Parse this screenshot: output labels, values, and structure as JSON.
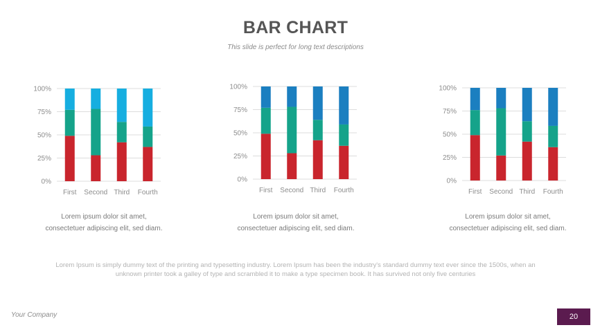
{
  "title": "BAR CHART",
  "subtitle": "This slide is perfect for long text descriptions",
  "colors": {
    "red": "#c9252d",
    "green": "#15a38a",
    "blue_light": "#16aee0",
    "blue_dark": "#1b7fc0"
  },
  "chart_data": [
    {
      "type": "bar",
      "stacked": true,
      "percent": true,
      "categories": [
        "First",
        "Second",
        "Third",
        "Fourth"
      ],
      "y_ticks": [
        "0%",
        "25%",
        "50%",
        "75%",
        "100%"
      ],
      "ylim": [
        0,
        100
      ],
      "series": [
        {
          "color": "#c9252d",
          "values": [
            49,
            28,
            42,
            37
          ]
        },
        {
          "color": "#15a38a",
          "values": [
            28,
            50,
            22,
            22
          ]
        },
        {
          "color": "#16aee0",
          "values": [
            23,
            22,
            36,
            41
          ]
        }
      ]
    },
    {
      "type": "bar",
      "stacked": true,
      "percent": true,
      "categories": [
        "First",
        "Second",
        "Third",
        "Fourth"
      ],
      "y_ticks": [
        "0%",
        "25%",
        "50%",
        "75%",
        "100%"
      ],
      "ylim": [
        0,
        100
      ],
      "series": [
        {
          "color": "#c9252d",
          "values": [
            49,
            28,
            42,
            36
          ]
        },
        {
          "color": "#15a38a",
          "values": [
            28,
            50,
            22,
            23
          ]
        },
        {
          "color": "#1b7fc0",
          "values": [
            23,
            22,
            36,
            41
          ]
        }
      ]
    },
    {
      "type": "bar",
      "stacked": true,
      "percent": true,
      "categories": [
        "First",
        "Second",
        "Third",
        "Fourth"
      ],
      "y_ticks": [
        "0%",
        "25%",
        "50%",
        "75%",
        "100%"
      ],
      "ylim": [
        0,
        100
      ],
      "series": [
        {
          "color": "#c9252d",
          "values": [
            49,
            27,
            42,
            36
          ]
        },
        {
          "color": "#15a38a",
          "values": [
            27,
            51,
            22,
            23
          ]
        },
        {
          "color": "#1b7fc0",
          "values": [
            24,
            22,
            36,
            41
          ]
        }
      ]
    }
  ],
  "descriptions": [
    "Lorem ipsum dolor sit amet, consectetuer adipiscing elit, sed diam.",
    "Lorem ipsum dolor sit amet, consectetuer adipiscing elit, sed diam.",
    "Lorem ipsum dolor sit amet, consectetuer adipiscing elit, sed diam."
  ],
  "body_text": "Lorem Ipsum is simply dummy text of the printing and typesetting industry. Lorem Ipsum has been the industry's standard dummy text ever since the 1500s, when an unknown printer took a galley of type and scrambled it to make a type specimen book. It has survived not only five centuries",
  "footer": {
    "company": "Your Company",
    "page_number": "20"
  }
}
